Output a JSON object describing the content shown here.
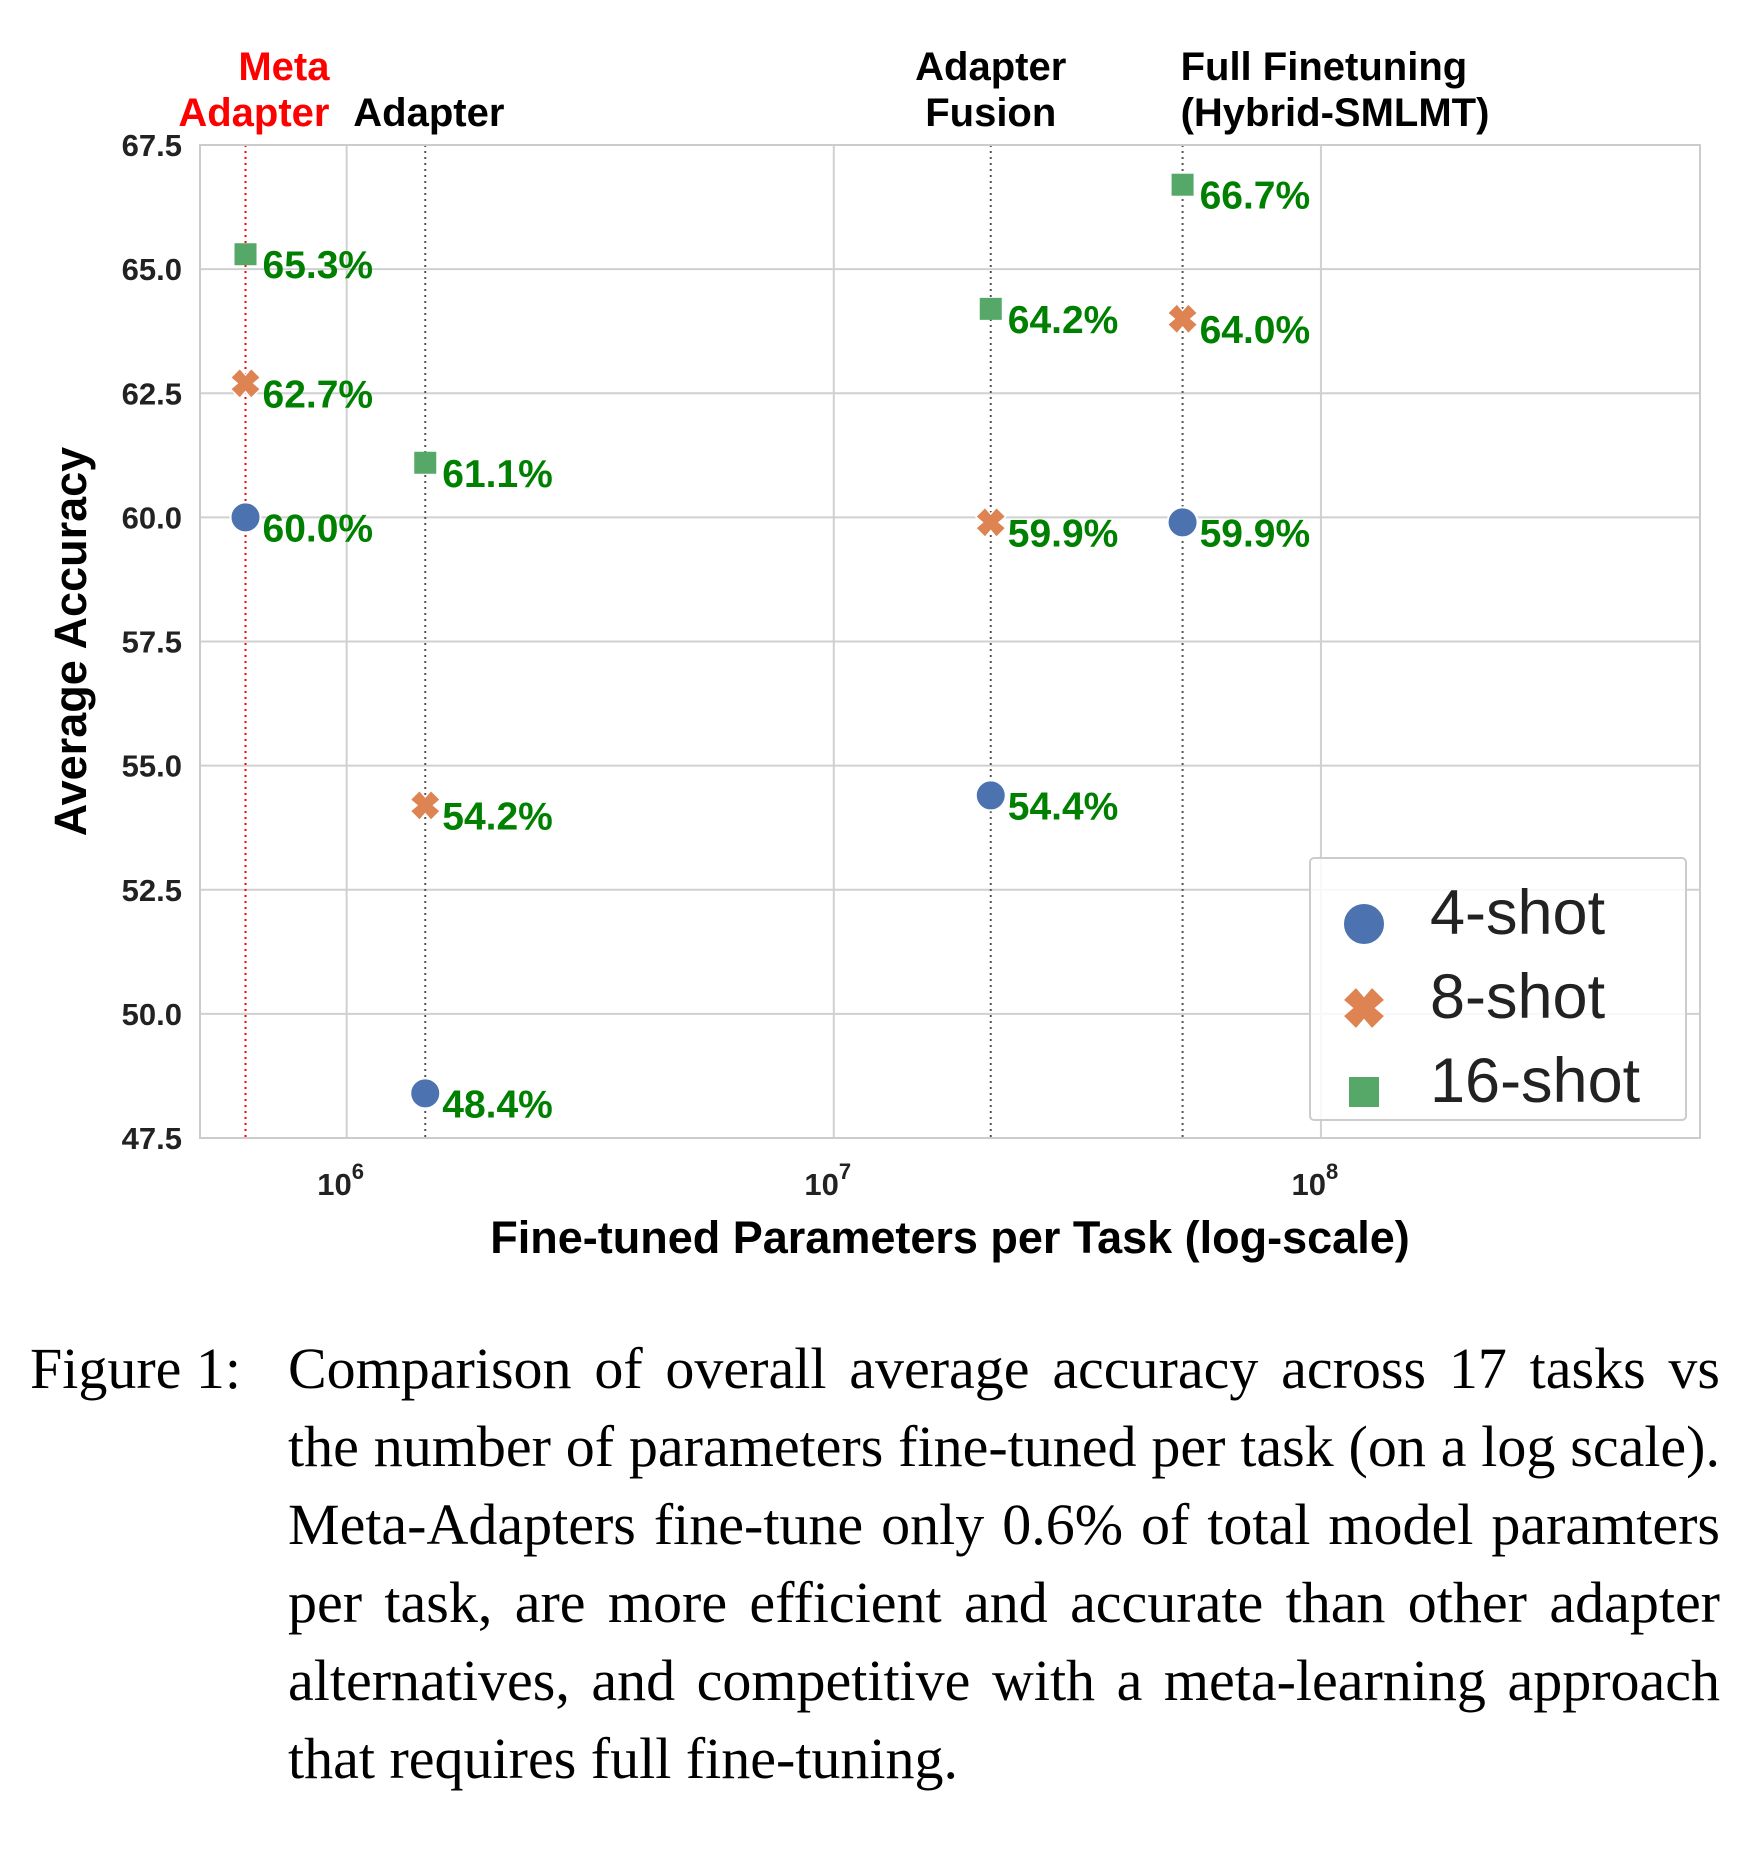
{
  "chart_data": {
    "type": "scatter",
    "xlabel": "Fine-tuned Parameters per Task (log-scale)",
    "ylabel": "Average Accuracy",
    "x_scale": "log",
    "xlim": [
      500000,
      600000000
    ],
    "ylim": [
      47.5,
      67.5
    ],
    "x_ticks": [
      {
        "value": 1000000,
        "base": "10",
        "exp": "6"
      },
      {
        "value": 10000000,
        "base": "10",
        "exp": "7"
      },
      {
        "value": 100000000,
        "base": "10",
        "exp": "8"
      }
    ],
    "y_ticks": [
      "47.5",
      "50.0",
      "52.5",
      "55.0",
      "57.5",
      "60.0",
      "62.5",
      "65.0",
      "67.5"
    ],
    "grid": true,
    "legend_position": "bottom-right",
    "series": [
      {
        "name": "4-shot",
        "marker": "circle",
        "color": "#4c72b0",
        "points": [
          {
            "x": 620000,
            "y": 60.0,
            "label": "60.0%"
          },
          {
            "x": 1450000,
            "y": 48.4,
            "label": "48.4%"
          },
          {
            "x": 21000000,
            "y": 54.4,
            "label": "54.4%"
          },
          {
            "x": 52000000,
            "y": 59.9,
            "label": "59.9%"
          }
        ]
      },
      {
        "name": "8-shot",
        "marker": "x",
        "color": "#dd8452",
        "points": [
          {
            "x": 620000,
            "y": 62.7,
            "label": "62.7%"
          },
          {
            "x": 1450000,
            "y": 54.2,
            "label": "54.2%"
          },
          {
            "x": 21000000,
            "y": 59.9,
            "label": "59.9%"
          },
          {
            "x": 52000000,
            "y": 64.0,
            "label": "64.0%"
          }
        ]
      },
      {
        "name": "16-shot",
        "marker": "square",
        "color": "#55a868",
        "points": [
          {
            "x": 620000,
            "y": 65.3,
            "label": "65.3%"
          },
          {
            "x": 1450000,
            "y": 61.1,
            "label": "61.1%"
          },
          {
            "x": 21000000,
            "y": 64.2,
            "label": "64.2%"
          },
          {
            "x": 52000000,
            "y": 66.7,
            "label": "66.7%"
          }
        ]
      }
    ],
    "label_color": "#008000",
    "methods": [
      {
        "x": 620000,
        "lines": [
          "Meta",
          "Adapter"
        ],
        "color": "#ff0000",
        "line_color": "#ff0000",
        "align": "end"
      },
      {
        "x": 1450000,
        "lines": [
          "Adapter"
        ],
        "color": "#000000",
        "line_color": "#555555",
        "align": "adapter"
      },
      {
        "x": 21000000,
        "lines": [
          "Adapter",
          "Fusion"
        ],
        "color": "#000000",
        "line_color": "#555555",
        "align": "middle"
      },
      {
        "x": 52000000,
        "lines": [
          "Full Finetuning",
          "(Hybrid-SMLMT)"
        ],
        "color": "#000000",
        "line_color": "#555555",
        "align": "start"
      }
    ]
  },
  "caption": {
    "label": "Figure 1:",
    "text": "Comparison of overall average accuracy across 17 tasks vs the number of parameters fine-tuned per task (on a log scale). Meta-Adapters fine-tune only 0.6% of total model paramters per task, are more efficient and accurate than other adapter alternatives, and competitive with a meta-learning approach that requires full fine-tuning."
  }
}
